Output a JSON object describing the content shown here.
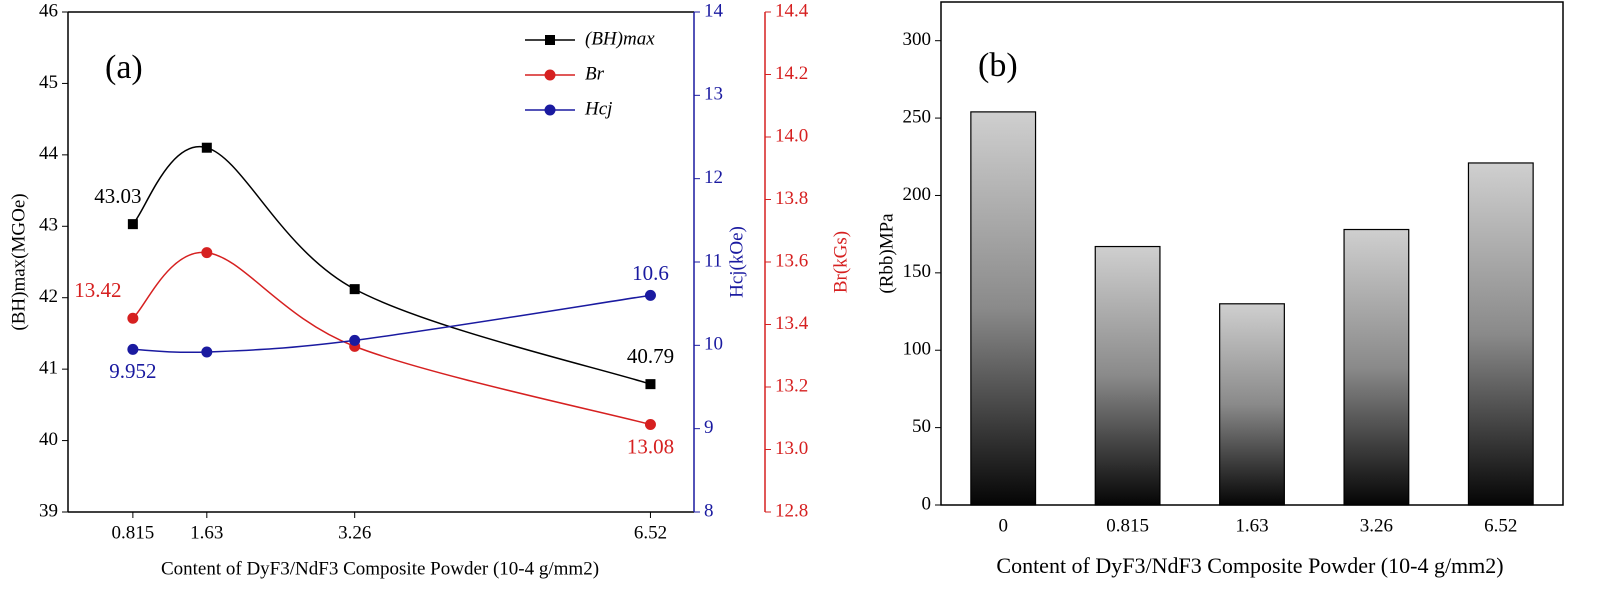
{
  "chart_data": [
    {
      "type": "line",
      "panel_label": "(a)",
      "xlabel": "Content of  DyF3/NdF3 Composite Powder (10-4 g/mm2)",
      "x": [
        0.815,
        1.63,
        3.26,
        6.52
      ],
      "xlim": [
        0.1,
        7.0
      ],
      "xticks": [
        0.815,
        1.63,
        3.26,
        6.52
      ],
      "ylabel": "(BH)max(MGOe)",
      "ylim": [
        39,
        46
      ],
      "yticks": [
        39,
        40,
        41,
        42,
        43,
        44,
        45,
        46
      ],
      "y2label": "Hcj(kOe)",
      "y2lim": [
        8,
        14
      ],
      "y2ticks": [
        8,
        9,
        10,
        11,
        12,
        13,
        14
      ],
      "y3label": "Br(kGs)",
      "y3lim": [
        12.8,
        14.4
      ],
      "y3ticks": [
        12.8,
        {
          "value": 13.0,
          "label": "13.0"
        },
        13.2,
        13.4,
        13.6,
        13.8,
        {
          "value": 14.0,
          "label": "14.0"
        },
        14.2,
        14.4
      ],
      "series": [
        {
          "name": "(BH)max",
          "color": "#000000",
          "axis": "y",
          "values": [
            43.03,
            44.1,
            42.12,
            40.79
          ],
          "value_labels": [
            "43.03",
            null,
            null,
            "40.79"
          ]
        },
        {
          "name": "Br",
          "color": "#d62020",
          "axis": "y3",
          "values": [
            13.42,
            13.63,
            13.33,
            13.08
          ],
          "value_labels": [
            "13.42",
            null,
            null,
            "13.08"
          ]
        },
        {
          "name": "Hcj",
          "color": "#1a1aa0",
          "axis": "y2",
          "values": [
            9.952,
            9.92,
            10.06,
            10.6
          ],
          "value_labels": [
            "9.952",
            null,
            null,
            "10.6"
          ]
        }
      ]
    },
    {
      "type": "bar",
      "panel_label": "(b)",
      "xlabel": "Content of  DyF3/NdF3 Composite Powder (10-4 g/mm2)",
      "ylabel": "(Rbb)MPa",
      "categories": [
        "0",
        "0.815",
        "1.63",
        "3.26",
        "6.52"
      ],
      "values": [
        254,
        167,
        130,
        178,
        221
      ],
      "ylim": [
        0,
        325
      ],
      "yticks": [
        0,
        50,
        100,
        150,
        200,
        250,
        300
      ]
    }
  ]
}
